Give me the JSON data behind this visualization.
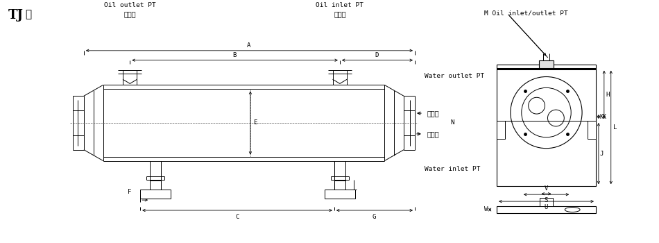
{
  "bg_color": "#ffffff",
  "line_color": "#000000",
  "title_bold": "TJ",
  "title_normal": "型",
  "label_oil_outlet_en": "Oil outlet PT",
  "label_oil_outlet_cn": "油出口",
  "label_oil_inlet_en": "Oil inlet PT",
  "label_oil_inlet_cn": "油入口",
  "label_water_outlet_en": "Water outlet PT",
  "label_water_outlet_cn": "出水口",
  "label_water_inlet_en": "Water inlet PT",
  "label_water_inlet_cn": "入水口",
  "label_m_oil": "M Oil inlet/outlet PT",
  "label_N": "N",
  "dim_A": "A",
  "dim_B": "B",
  "dim_D": "D",
  "dim_C": "C",
  "dim_G": "G",
  "dim_F": "F",
  "dim_E": "E",
  "dim_H": "H",
  "dim_KK": "KK",
  "dim_J": "J",
  "dim_L": "L",
  "dim_S": "S",
  "dim_U": "U",
  "dim_V": "V",
  "dim_W": "W"
}
